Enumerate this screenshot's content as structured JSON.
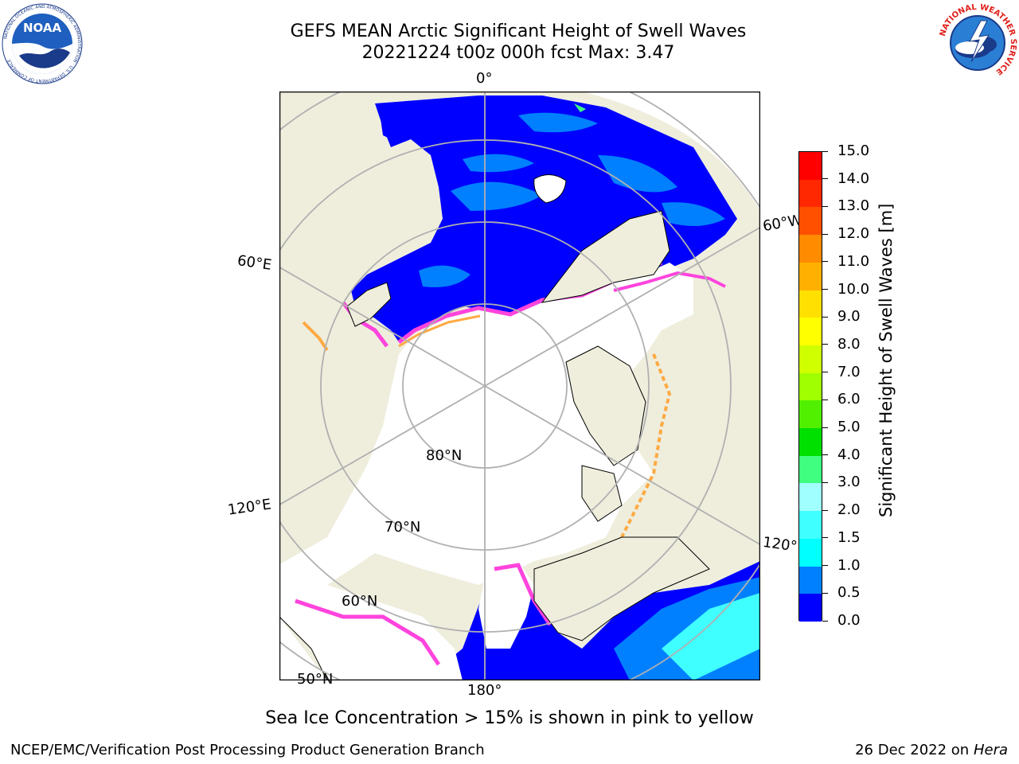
{
  "header": {
    "title_line1": "GEFS MEAN Arctic Significant Height of Swell Waves",
    "title_line2": "20221224 t00z 000h fcst   Max: 3.47"
  },
  "logos": {
    "left": {
      "name": "noaa-logo",
      "text": "NOAA",
      "ring_text": "NATIONAL OCEANIC AND ATMOSPHERIC ADMINISTRATION · U.S. DEPARTMENT OF COMMERCE"
    },
    "right": {
      "name": "nws-logo",
      "ring_text": "NATIONAL WEATHER SERVICE"
    }
  },
  "map": {
    "longitude_labels": {
      "top": "0°",
      "right_upper": "60°W",
      "left_upper": "60°E",
      "left_lower": "120°E",
      "right_lower": "120°W",
      "bottom": "180°"
    },
    "latitude_labels": [
      "80°N",
      "70°N",
      "60°N",
      "50°N"
    ],
    "colors": {
      "land": "#efeedd",
      "sea_ice": "#ffffff",
      "ocean_low": "#0000ff",
      "ice_edge": "#ff44dd",
      "ice_edge_warm": "#ffaa44",
      "grid": "#b0b0b0"
    }
  },
  "colorbar": {
    "label": "Significant Height of Swell Waves [m]",
    "ticks": [
      "0.0",
      "0.5",
      "1.0",
      "1.5",
      "2.0",
      "3.0",
      "4.0",
      "5.0",
      "6.0",
      "7.0",
      "8.0",
      "9.0",
      "10.0",
      "11.0",
      "12.0",
      "13.0",
      "14.0",
      "15.0"
    ],
    "colors": [
      "#0000ff",
      "#0080ff",
      "#00ffff",
      "#40ffff",
      "#a0ffff",
      "#40ff80",
      "#00e000",
      "#50f000",
      "#a0ff00",
      "#d0ff00",
      "#ffff00",
      "#ffe000",
      "#ffb000",
      "#ff8c00",
      "#ff5000",
      "#ff2800",
      "#ff0000"
    ]
  },
  "footer": {
    "note": "Sea Ice Concentration > 15% is shown in pink to yellow",
    "credit_left": "NCEP/EMC/Verification Post Processing Product Generation Branch",
    "credit_date": "26 Dec 2022 on",
    "credit_machine": "Hera"
  }
}
